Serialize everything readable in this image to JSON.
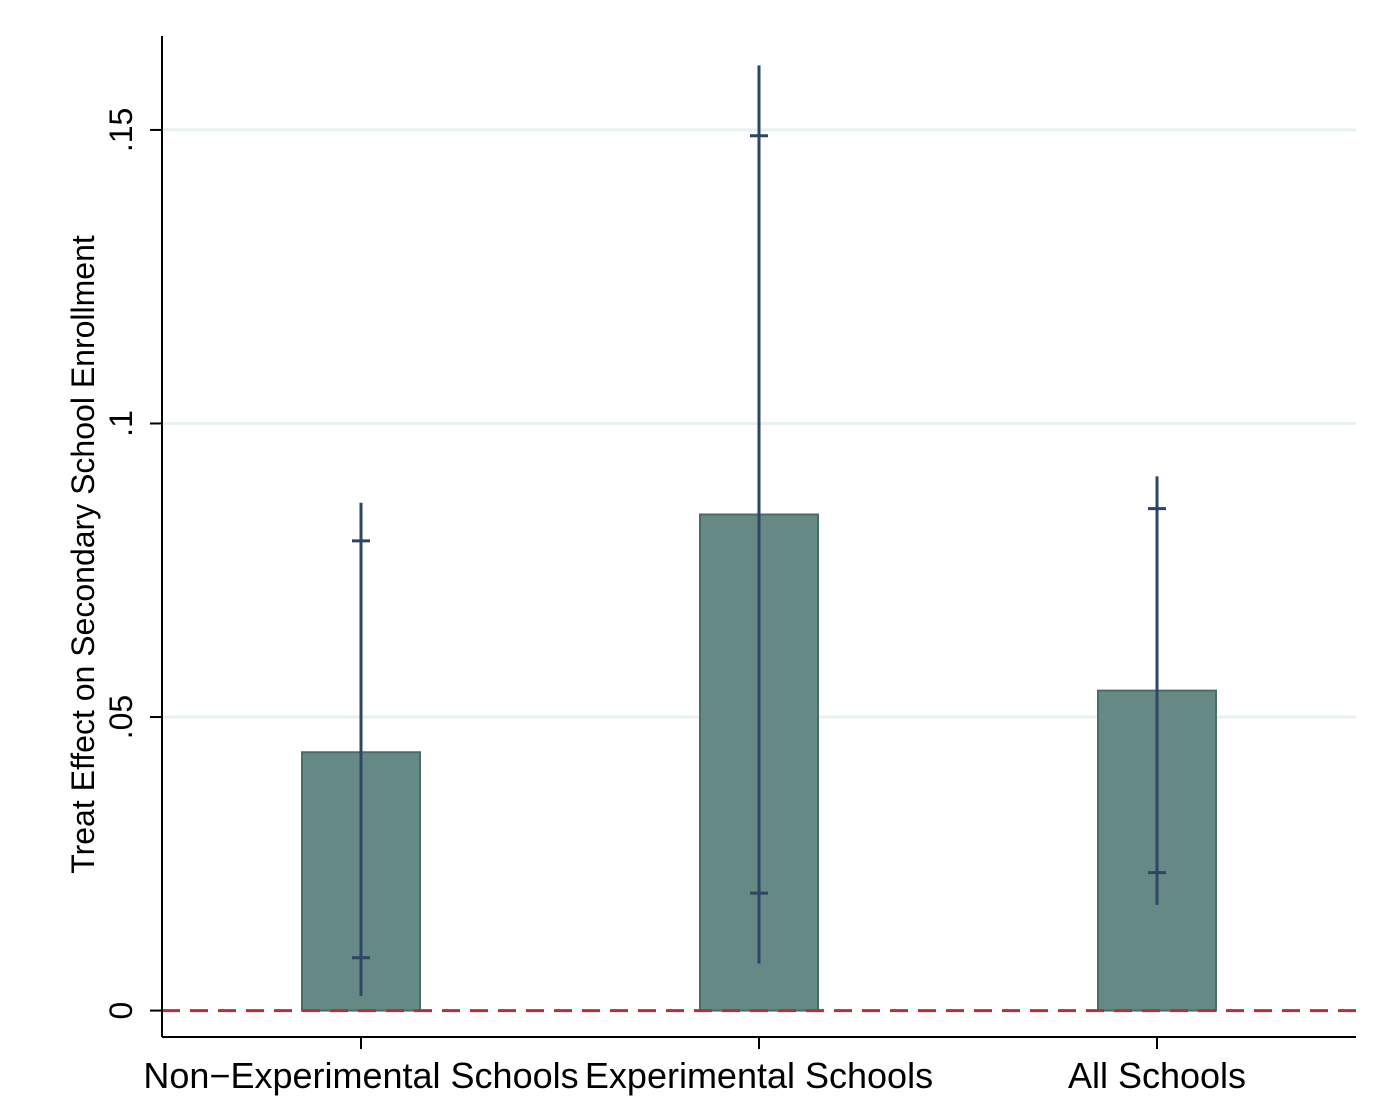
{
  "chart_data": {
    "type": "bar",
    "title": "",
    "xlabel": "",
    "ylabel": "Treat Effect on Secondary School Enrollment",
    "categories": [
      "Non−Experimental Schools",
      "Experimental Schools",
      "All Schools"
    ],
    "values": [
      0.044,
      0.0845,
      0.0545
    ],
    "ci_inner": [
      [
        0.009,
        0.08
      ],
      [
        0.02,
        0.149
      ],
      [
        0.0235,
        0.0855
      ]
    ],
    "ci_outer": [
      [
        0.0025,
        0.0865
      ],
      [
        0.008,
        0.161
      ],
      [
        0.018,
        0.091
      ]
    ],
    "yticks": [
      0,
      0.05,
      0.1,
      0.15
    ],
    "ytick_labels": [
      "0",
      ".05",
      ".1",
      ".15"
    ],
    "ylim": [
      -0.0045,
      0.166
    ],
    "reference_line": 0,
    "grid": true,
    "colors": {
      "bar_fill": "#658985",
      "bar_stroke": "#4a6d69",
      "error_bar": "#2e4565",
      "reference_line": "#b0303f",
      "grid": "#e8f0f0",
      "axis": "#000000"
    }
  }
}
